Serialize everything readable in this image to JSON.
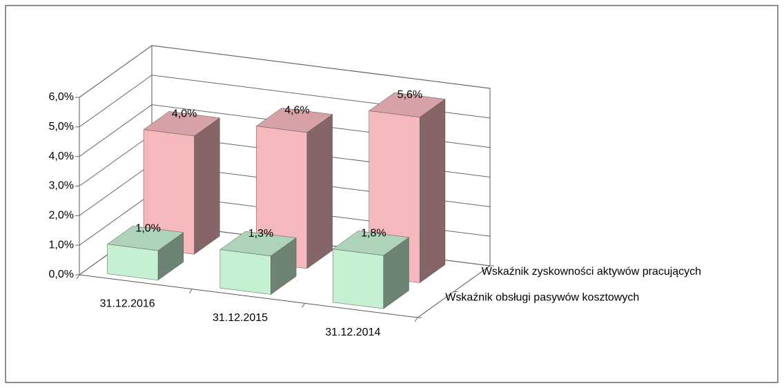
{
  "chart_data": {
    "type": "bar3d",
    "categories": [
      "31.12.2016",
      "31.12.2015",
      "31.12.2014"
    ],
    "series": [
      {
        "name": "Wskaźnik obsługi pasywów kosztowych",
        "color": "#c6f0d2",
        "values": [
          1.0,
          1.3,
          1.8
        ],
        "value_labels": [
          "1,0%",
          "1,3%",
          "1,8%"
        ]
      },
      {
        "name": "Wskaźnik zyskowności aktywów pracujących",
        "color": "#f4b8bd",
        "values": [
          4.0,
          4.6,
          5.6
        ],
        "value_labels": [
          "4,0%",
          "4,6%",
          "5,6%"
        ]
      }
    ],
    "ylim": [
      0,
      6
    ],
    "yticks": [
      {
        "value": 0,
        "label": "0,0%"
      },
      {
        "value": 1,
        "label": "1,0%"
      },
      {
        "value": 2,
        "label": "2,0%"
      },
      {
        "value": 3,
        "label": "3,0%"
      },
      {
        "value": 4,
        "label": "4,0%"
      },
      {
        "value": 5,
        "label": "5,0%"
      },
      {
        "value": 6,
        "label": "6,0%"
      }
    ],
    "grid": true
  }
}
